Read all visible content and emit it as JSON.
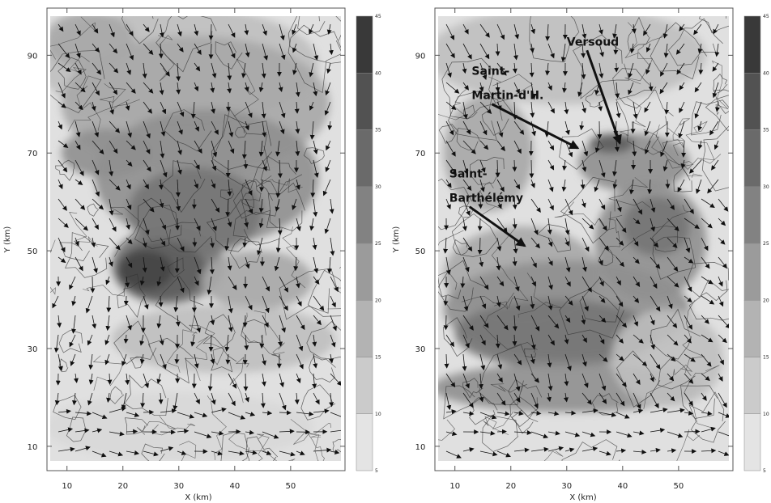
{
  "chart_data": [
    {
      "type": "heatmap",
      "panel": "left",
      "xlabel": "X (km)",
      "ylabel": "Y (km)",
      "xlim": [
        7,
        59
      ],
      "ylim": [
        7,
        98
      ],
      "xticks": [
        10,
        20,
        30,
        40,
        50
      ],
      "yticks": [
        10,
        30,
        50,
        70,
        90
      ],
      "colorbar": {
        "ticks": [
          5,
          10,
          15,
          20,
          25,
          30,
          35,
          40,
          45
        ],
        "range": [
          5,
          45
        ]
      },
      "shaded_regions": [
        {
          "level": 15,
          "x": 30,
          "y": 88,
          "rx": 25,
          "ry": 12
        },
        {
          "level": 20,
          "x": 33,
          "y": 80,
          "rx": 24,
          "ry": 14
        },
        {
          "level": 20,
          "x": 14,
          "y": 93,
          "rx": 8,
          "ry": 6
        },
        {
          "level": 25,
          "x": 35,
          "y": 65,
          "rx": 20,
          "ry": 14
        },
        {
          "level": 25,
          "x": 17,
          "y": 70,
          "rx": 8,
          "ry": 5
        },
        {
          "level": 30,
          "x": 33,
          "y": 58,
          "rx": 12,
          "ry": 9
        },
        {
          "level": 30,
          "x": 28,
          "y": 47,
          "rx": 10,
          "ry": 8
        },
        {
          "level": 35,
          "x": 27,
          "y": 46,
          "rx": 8,
          "ry": 6
        },
        {
          "level": 40,
          "x": 24,
          "y": 46,
          "rx": 5,
          "ry": 4
        },
        {
          "level": 20,
          "x": 44,
          "y": 44,
          "rx": 10,
          "ry": 6
        },
        {
          "level": 15,
          "x": 38,
          "y": 32,
          "rx": 20,
          "ry": 7
        },
        {
          "level": 10,
          "x": 30,
          "y": 14,
          "rx": 24,
          "ry": 7
        }
      ]
    },
    {
      "type": "heatmap",
      "panel": "right",
      "xlabel": "X (km)",
      "ylabel": "Y (km)",
      "xlim": [
        7,
        59
      ],
      "ylim": [
        7,
        98
      ],
      "xticks": [
        10,
        20,
        30,
        40,
        50
      ],
      "yticks": [
        10,
        30,
        50,
        70,
        90
      ],
      "colorbar": {
        "ticks": [
          5,
          10,
          15,
          20,
          25,
          30,
          35,
          40,
          45
        ],
        "range": [
          5,
          45
        ]
      },
      "shaded_regions": [
        {
          "level": 15,
          "x": 30,
          "y": 90,
          "rx": 25,
          "ry": 10
        },
        {
          "level": 20,
          "x": 16,
          "y": 70,
          "rx": 8,
          "ry": 12
        },
        {
          "level": 25,
          "x": 42,
          "y": 68,
          "rx": 10,
          "ry": 6
        },
        {
          "level": 35,
          "x": 38,
          "y": 72,
          "rx": 4,
          "ry": 2
        },
        {
          "level": 25,
          "x": 45,
          "y": 52,
          "rx": 10,
          "ry": 12
        },
        {
          "level": 30,
          "x": 46,
          "y": 55,
          "rx": 6,
          "ry": 6
        },
        {
          "level": 20,
          "x": 22,
          "y": 45,
          "rx": 14,
          "ry": 10
        },
        {
          "level": 25,
          "x": 30,
          "y": 38,
          "rx": 22,
          "ry": 10
        },
        {
          "level": 30,
          "x": 28,
          "y": 33,
          "rx": 18,
          "ry": 7
        },
        {
          "level": 25,
          "x": 30,
          "y": 22,
          "rx": 24,
          "ry": 5
        },
        {
          "level": 15,
          "x": 48,
          "y": 28,
          "rx": 10,
          "ry": 10
        }
      ],
      "annotations": [
        {
          "text": "Versoud",
          "tx": 30,
          "ty": 92,
          "ax": 39.5,
          "ay": 72
        },
        {
          "text": "Saint-",
          "tx": 13,
          "ty": 86,
          "ax": null,
          "ay": null
        },
        {
          "text": "Martin-d'H.",
          "tx": 13,
          "ty": 81,
          "ax": 32,
          "ay": 71
        },
        {
          "text": "Saint-",
          "tx": 9,
          "ty": 65,
          "ax": null,
          "ay": null
        },
        {
          "text": "Barthélémy",
          "tx": 9,
          "ty": 60,
          "ax": 22.5,
          "ay": 51
        }
      ]
    }
  ]
}
